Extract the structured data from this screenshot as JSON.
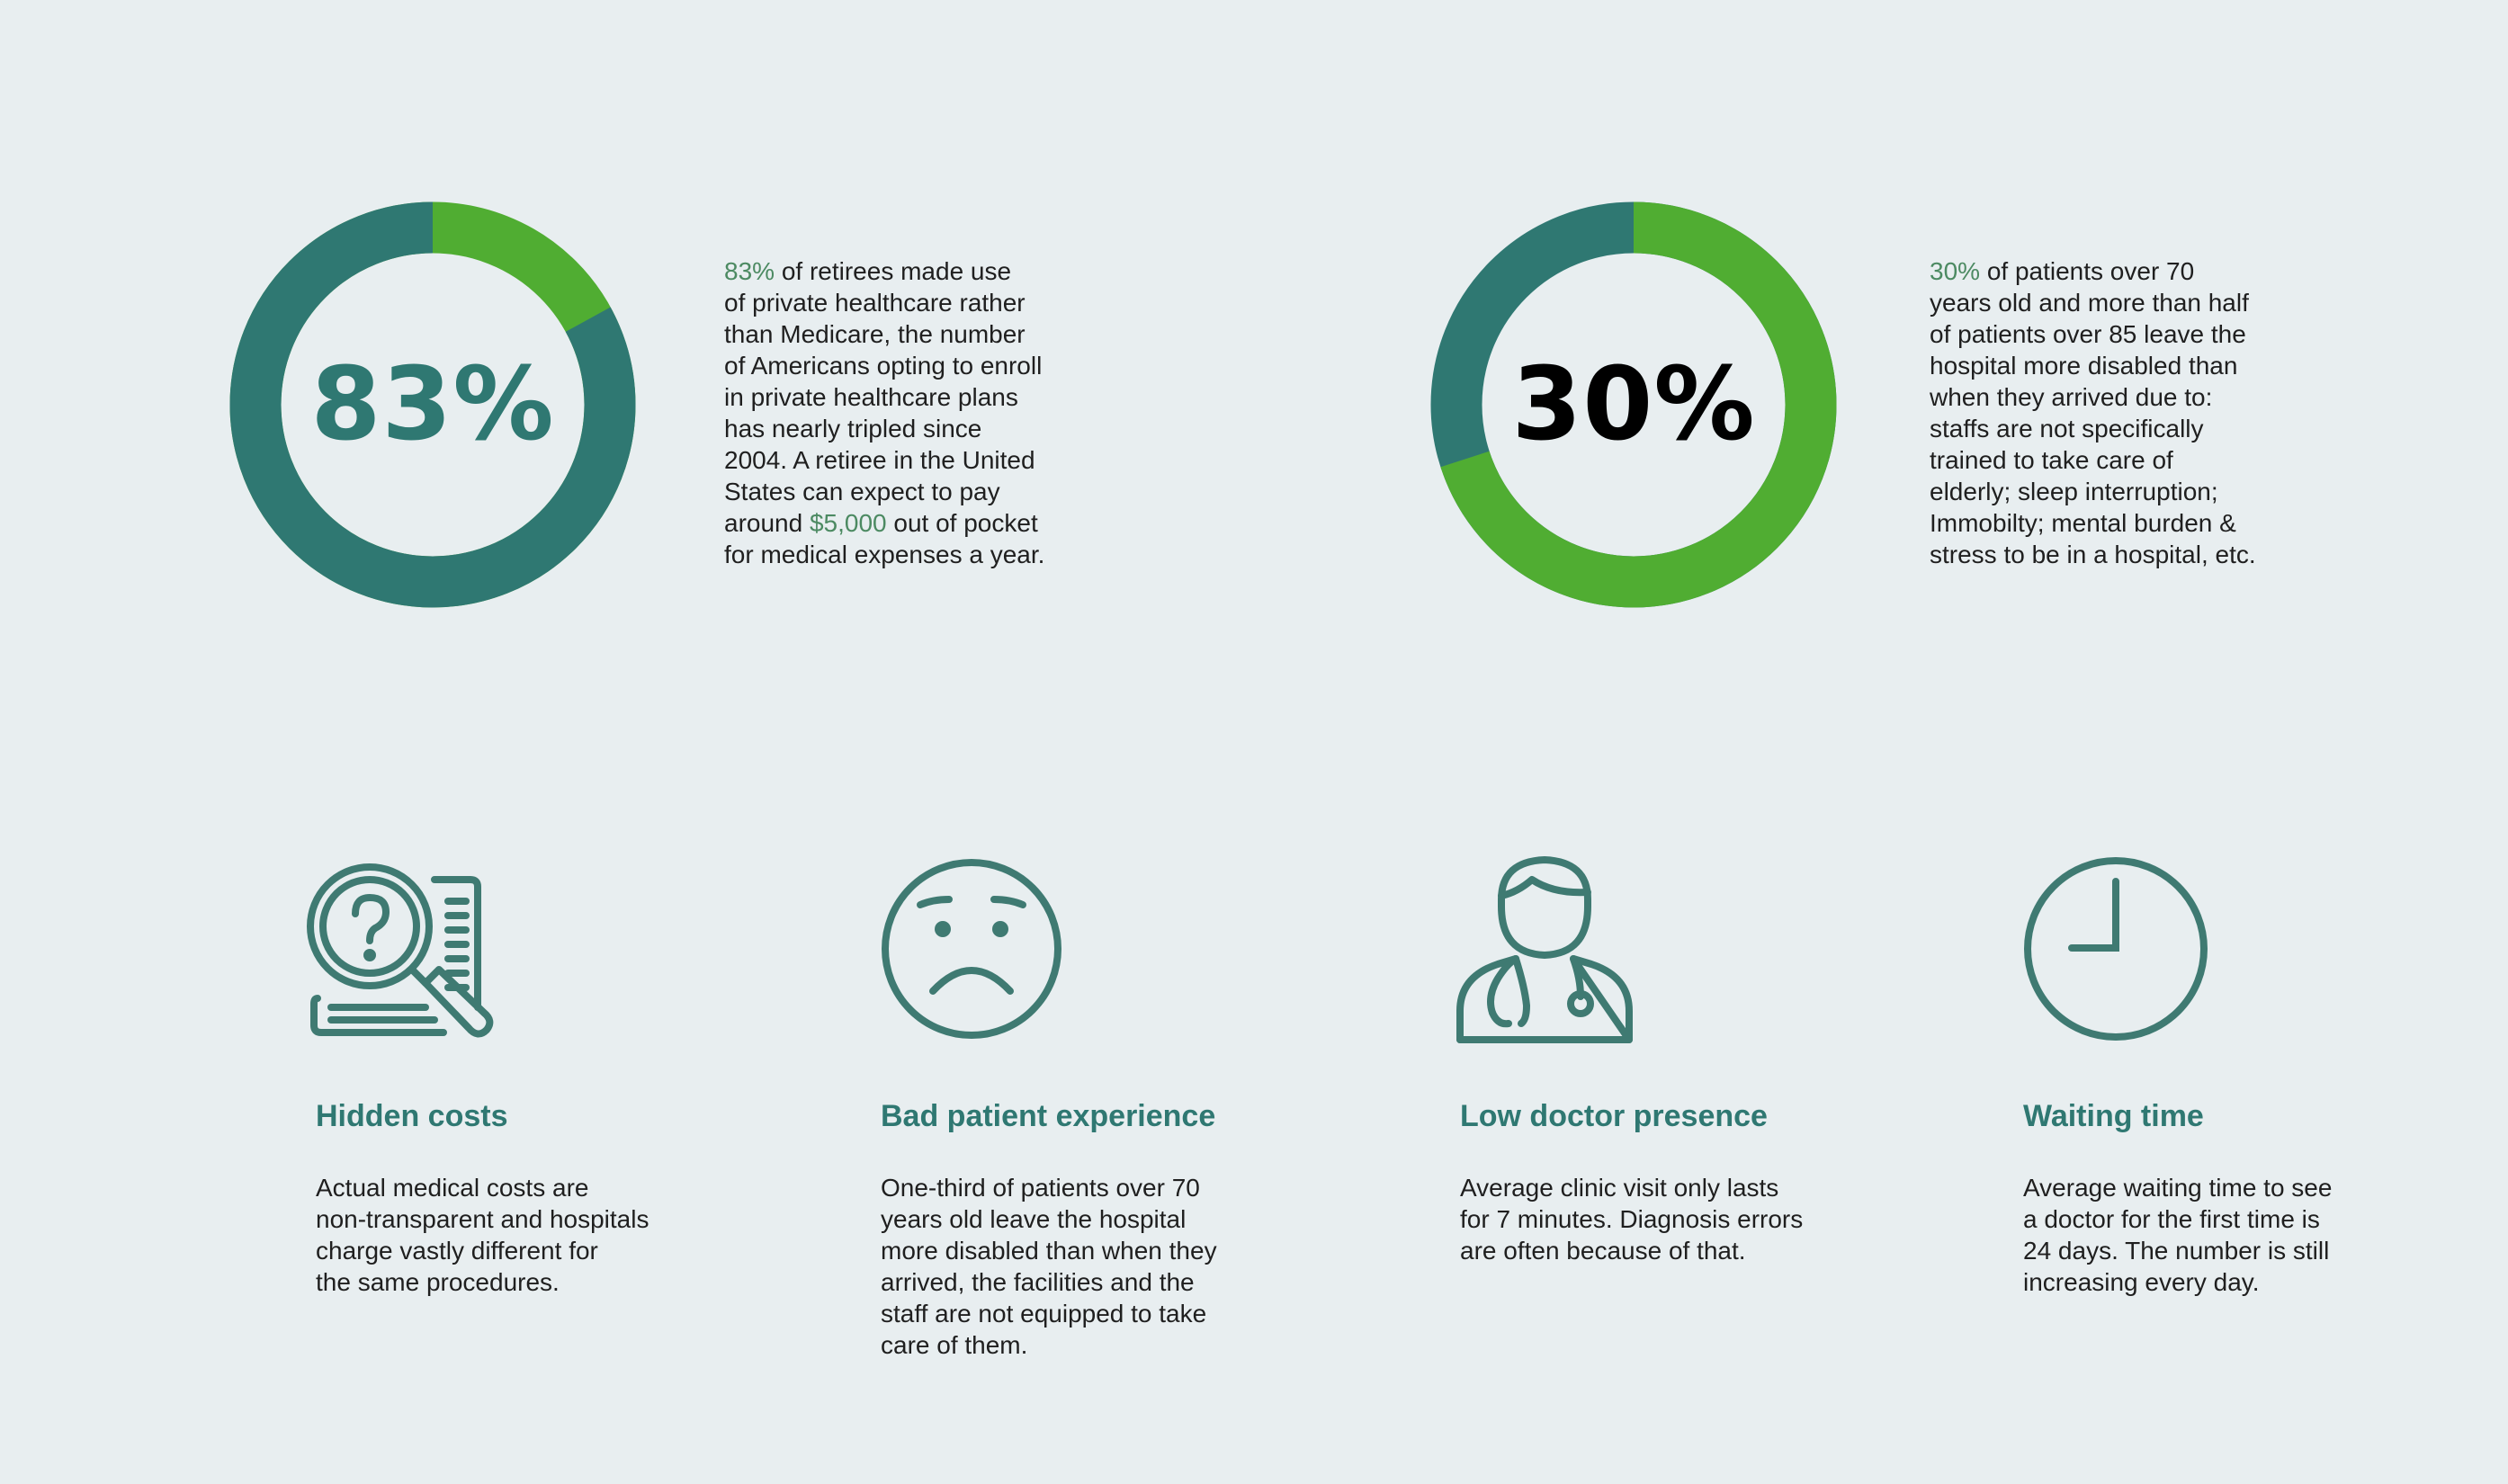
{
  "colors": {
    "background": "#e8eef0",
    "teal": "#2f7872",
    "green": "#50ad32",
    "highlight": "#4c8a62",
    "icon": "#3f7a72"
  },
  "stats": [
    {
      "value": 83,
      "label": "83%",
      "label_color": "#2f7872",
      "highlight_segment": "green",
      "lines": [
        [
          {
            "t": "83%",
            "h": true
          },
          {
            "t": " of retirees made use"
          }
        ],
        [
          {
            "t": "of private healthcare rather"
          }
        ],
        [
          {
            "t": "than Medicare, the number"
          }
        ],
        [
          {
            "t": "of Americans opting to enroll"
          }
        ],
        [
          {
            "t": "in private healthcare plans"
          }
        ],
        [
          {
            "t": "has nearly tripled since"
          }
        ],
        [
          {
            "t": "2004. A retiree in the United"
          }
        ],
        [
          {
            "t": "States can expect to pay"
          }
        ],
        [
          {
            "t": "around "
          },
          {
            "t": "$5,000",
            "h": true
          },
          {
            "t": " out of pocket"
          }
        ],
        [
          {
            "t": "for medical expenses a year."
          }
        ]
      ]
    },
    {
      "value": 30,
      "label": "30%",
      "label_color": "#000000",
      "highlight_segment": "teal",
      "lines": [
        [
          {
            "t": "30%",
            "h": true
          },
          {
            "t": " of patients over 70"
          }
        ],
        [
          {
            "t": "years old and more than half"
          }
        ],
        [
          {
            "t": "of patients over 85 leave the"
          }
        ],
        [
          {
            "t": "hospital more disabled than"
          }
        ],
        [
          {
            "t": "when they arrived due to:"
          }
        ],
        [
          {
            "t": "staffs are not specifically"
          }
        ],
        [
          {
            "t": "trained to take care of"
          }
        ],
        [
          {
            "t": "elderly; sleep interruption;"
          }
        ],
        [
          {
            "t": "Immobilty; mental burden &"
          }
        ],
        [
          {
            "t": "stress to be in a hospital, etc."
          }
        ]
      ]
    }
  ],
  "cards": [
    {
      "icon": "magnifier-document-question-icon",
      "title": "Hidden costs",
      "lines": [
        "Actual medical costs are",
        "non-transparent and hospitals",
        "charge vastly different for",
        "the same procedures."
      ]
    },
    {
      "icon": "sad-face-icon",
      "title": "Bad patient experience",
      "lines": [
        "One-third of patients over 70",
        "years old leave the hospital",
        "more disabled than when they",
        "arrived, the facilities and the",
        "staff are not equipped to take",
        "care of them."
      ]
    },
    {
      "icon": "doctor-stethoscope-icon",
      "title": "Low doctor presence",
      "lines": [
        "Average clinic visit only lasts",
        "for 7 minutes. Diagnosis errors",
        "are often because of that."
      ]
    },
    {
      "icon": "clock-icon",
      "title": "Waiting time",
      "lines": [
        "Average waiting time to see",
        "a doctor for the first time is",
        "24 days. The number is still",
        "increasing every day."
      ]
    }
  ]
}
